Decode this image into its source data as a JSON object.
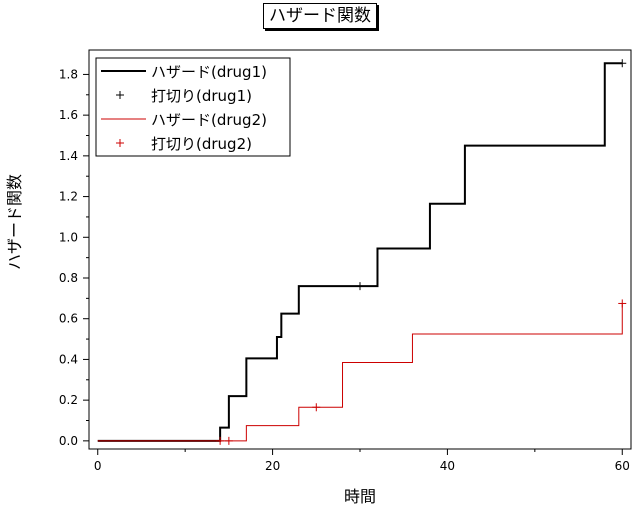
{
  "chart_data": {
    "type": "line",
    "title": "ハザード関数",
    "xlabel": "時間",
    "ylabel": "ハザード関数",
    "xlim": [
      -1,
      61
    ],
    "ylim": [
      -0.04,
      1.92
    ],
    "x_ticks": [
      0,
      20,
      40,
      60
    ],
    "y_ticks": [
      0.0,
      0.2,
      0.4,
      0.6,
      0.8,
      1.0,
      1.2,
      1.4,
      1.6,
      1.8
    ],
    "x_tick_labels": [
      "0",
      "20",
      "40",
      "60"
    ],
    "y_tick_labels": [
      "0.0",
      "0.2",
      "0.4",
      "0.6",
      "0.8",
      "1.0",
      "1.2",
      "1.4",
      "1.6",
      "1.8"
    ],
    "grid": false,
    "legend_position": "top-left",
    "series": [
      {
        "name": "ハザード(drug1)",
        "kind": "step",
        "color": "#000000",
        "x": [
          0,
          14,
          15,
          17,
          20.5,
          21,
          23,
          32,
          38,
          42,
          58,
          60
        ],
        "y": [
          0.0,
          0.065,
          0.22,
          0.405,
          0.51,
          0.625,
          0.76,
          0.945,
          1.165,
          1.45,
          1.855,
          1.855
        ]
      },
      {
        "name": "打切り(drug1)",
        "kind": "censor",
        "color": "#000000",
        "x": [
          30,
          60
        ],
        "y": [
          0.76,
          1.855
        ]
      },
      {
        "name": "ハザード(drug2)",
        "kind": "step",
        "color": "#cc0000",
        "x": [
          0,
          17,
          23,
          25.5,
          28,
          36,
          60,
          60
        ],
        "y": [
          0.0,
          0.075,
          0.165,
          0.165,
          0.385,
          0.525,
          0.525,
          0.675
        ]
      },
      {
        "name": "打切り(drug2)",
        "kind": "censor",
        "color": "#cc0000",
        "x": [
          14,
          15,
          25,
          60
        ],
        "y": [
          0.0,
          0.0,
          0.165,
          0.675
        ]
      }
    ]
  }
}
